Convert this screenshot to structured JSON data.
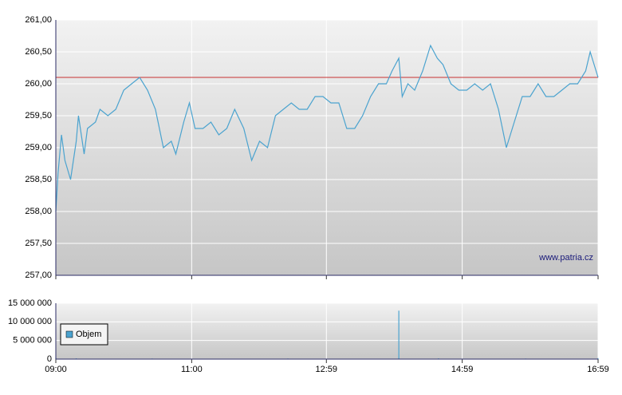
{
  "chart_data": [
    {
      "type": "line",
      "watermark": "www.patria.cz",
      "color": "#4ba3cf",
      "grid": true,
      "reference_line": {
        "value": 260.1,
        "color": "#c83232"
      },
      "x": [
        "09:00",
        "09:02",
        "09:05",
        "09:08",
        "09:13",
        "09:18",
        "09:20",
        "09:25",
        "09:28",
        "09:35",
        "09:39",
        "09:46",
        "09:53",
        "10:00",
        "10:07",
        "10:14",
        "10:21",
        "10:28",
        "10:35",
        "10:42",
        "10:46",
        "10:53",
        "10:58",
        "11:03",
        "11:10",
        "11:17",
        "11:24",
        "11:31",
        "11:38",
        "11:46",
        "11:53",
        "12:00",
        "12:07",
        "12:14",
        "12:21",
        "12:28",
        "12:35",
        "12:42",
        "12:49",
        "12:56",
        "13:03",
        "13:10",
        "13:17",
        "13:24",
        "13:31",
        "13:38",
        "13:45",
        "13:52",
        "13:57",
        "14:03",
        "14:06",
        "14:11",
        "14:17",
        "14:24",
        "14:31",
        "14:37",
        "14:42",
        "14:49",
        "14:56",
        "15:03",
        "15:10",
        "15:17",
        "15:24",
        "15:31",
        "15:38",
        "15:45",
        "15:52",
        "15:59",
        "16:06",
        "16:13",
        "16:20",
        "16:27",
        "16:34",
        "16:41",
        "16:48",
        "16:52",
        "16:59"
      ],
      "values": [
        258.0,
        258.6,
        259.2,
        258.8,
        258.5,
        259.1,
        259.5,
        258.9,
        259.3,
        259.4,
        259.6,
        259.5,
        259.6,
        259.9,
        260.0,
        260.1,
        259.9,
        259.6,
        259.0,
        259.1,
        258.9,
        259.4,
        259.7,
        259.3,
        259.3,
        259.4,
        259.2,
        259.3,
        259.6,
        259.3,
        258.8,
        259.1,
        259.0,
        259.5,
        259.6,
        259.7,
        259.6,
        259.6,
        259.8,
        259.8,
        259.7,
        259.7,
        259.3,
        259.3,
        259.5,
        259.8,
        260.0,
        260.0,
        260.2,
        260.4,
        259.8,
        260.0,
        259.9,
        260.2,
        260.6,
        260.4,
        260.3,
        260.0,
        259.9,
        259.9,
        260.0,
        259.9,
        260.0,
        259.6,
        259.0,
        259.4,
        259.8,
        259.8,
        260.0,
        259.8,
        259.8,
        259.9,
        260.0,
        260.0,
        260.2,
        260.5,
        260.1
      ],
      "xlim": [
        "09:00",
        "16:59"
      ],
      "xticks": [
        "09:00",
        "11:00",
        "12:59",
        "14:59",
        "16:59"
      ],
      "ylim": [
        257,
        261
      ],
      "yticks": [
        {
          "value": 257,
          "label": "257,00"
        },
        {
          "value": 257.5,
          "label": "257,50"
        },
        {
          "value": 258,
          "label": "258,00"
        },
        {
          "value": 258.5,
          "label": "258,50"
        },
        {
          "value": 259,
          "label": "259,00"
        },
        {
          "value": 259.5,
          "label": "259,50"
        },
        {
          "value": 260,
          "label": "260,00"
        },
        {
          "value": 260.5,
          "label": "260,50"
        },
        {
          "value": 261,
          "label": "261,00"
        }
      ]
    },
    {
      "type": "bar",
      "grid": true,
      "legend": "left",
      "x": [
        "09:00",
        "09:18",
        "10:25",
        "11:30",
        "12:25",
        "14:03",
        "14:38",
        "15:55",
        "16:59"
      ],
      "series": [
        {
          "name": "Objem",
          "color": "#4ba3cf",
          "values": [
            300000,
            200000,
            150000,
            100000,
            150000,
            13000000,
            200000,
            150000,
            250000
          ]
        }
      ],
      "xlim": [
        "09:00",
        "16:59"
      ],
      "xticks": [
        "09:00",
        "11:00",
        "12:59",
        "14:59",
        "16:59"
      ],
      "ylim": [
        0,
        15000000
      ],
      "yticks": [
        0,
        {
          "value": 5000000,
          "label": "5 000 000"
        },
        {
          "value": 10000000,
          "label": "10 000 000"
        },
        {
          "value": 15000000,
          "label": "15 000 000"
        }
      ]
    }
  ]
}
